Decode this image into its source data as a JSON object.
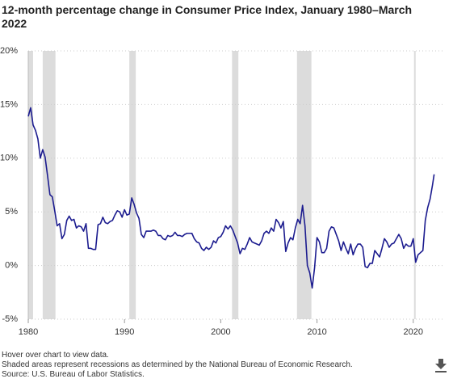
{
  "chart_data": {
    "type": "line",
    "title": "12-month percentage change in Consumer Price Index, January 1980–March 2022",
    "notes": [
      "Hover over chart to view data.",
      "Shaded areas represent recessions as determined by the National Bureau of Economic Research.",
      "Source: U.S. Bureau of Labor Statistics."
    ],
    "color": "#1c1c8f",
    "recessions": [
      [
        1980.0,
        1980.5
      ],
      [
        1981.5,
        1982.83
      ],
      [
        1990.5,
        1991.17
      ],
      [
        2001.17,
        2001.83
      ],
      [
        2007.92,
        2009.42
      ],
      [
        2020.08,
        2020.25
      ]
    ],
    "x": [
      1980,
      1980.25,
      1980.5,
      1980.75,
      1981,
      1981.25,
      1981.5,
      1981.75,
      1982,
      1982.25,
      1982.5,
      1982.75,
      1983,
      1983.25,
      1983.5,
      1983.75,
      1984,
      1984.25,
      1984.5,
      1984.75,
      1985,
      1985.25,
      1985.5,
      1985.75,
      1986,
      1986.25,
      1986.5,
      1986.75,
      1987,
      1987.25,
      1987.5,
      1987.75,
      1988,
      1988.25,
      1988.5,
      1988.75,
      1989,
      1989.25,
      1989.5,
      1989.75,
      1990,
      1990.25,
      1990.5,
      1990.75,
      1991,
      1991.25,
      1991.5,
      1991.75,
      1992,
      1992.25,
      1992.5,
      1992.75,
      1993,
      1993.25,
      1993.5,
      1993.75,
      1994,
      1994.25,
      1994.5,
      1994.75,
      1995,
      1995.25,
      1995.5,
      1995.75,
      1996,
      1996.25,
      1996.5,
      1996.75,
      1997,
      1997.25,
      1997.5,
      1997.75,
      1998,
      1998.25,
      1998.5,
      1998.75,
      1999,
      1999.25,
      1999.5,
      1999.75,
      2000,
      2000.25,
      2000.5,
      2000.75,
      2001,
      2001.25,
      2001.5,
      2001.75,
      2002,
      2002.25,
      2002.5,
      2002.75,
      2003,
      2003.25,
      2003.5,
      2003.75,
      2004,
      2004.25,
      2004.5,
      2004.75,
      2005,
      2005.25,
      2005.5,
      2005.75,
      2006,
      2006.25,
      2006.5,
      2006.75,
      2007,
      2007.25,
      2007.5,
      2007.75,
      2008,
      2008.25,
      2008.5,
      2008.75,
      2009,
      2009.25,
      2009.5,
      2009.75,
      2010,
      2010.25,
      2010.5,
      2010.75,
      2011,
      2011.25,
      2011.5,
      2011.75,
      2012,
      2012.25,
      2012.5,
      2012.75,
      2013,
      2013.25,
      2013.5,
      2013.75,
      2014,
      2014.25,
      2014.5,
      2014.75,
      2015,
      2015.25,
      2015.5,
      2015.75,
      2016,
      2016.25,
      2016.5,
      2016.75,
      2017,
      2017.25,
      2017.5,
      2017.75,
      2018,
      2018.25,
      2018.5,
      2018.75,
      2019,
      2019.25,
      2019.5,
      2019.75,
      2020,
      2020.25,
      2020.5,
      2020.75,
      2021,
      2021.25,
      2021.5,
      2021.75,
      2022,
      2022.17
    ],
    "values": [
      13.9,
      14.7,
      13.1,
      12.6,
      11.8,
      10.0,
      10.8,
      10.1,
      8.4,
      6.6,
      6.4,
      5.1,
      3.7,
      3.9,
      2.5,
      2.9,
      4.2,
      4.6,
      4.2,
      4.3,
      3.5,
      3.7,
      3.6,
      3.2,
      3.9,
      1.6,
      1.6,
      1.5,
      1.5,
      3.8,
      3.9,
      4.5,
      4.0,
      3.9,
      4.1,
      4.2,
      4.7,
      5.1,
      5.0,
      4.5,
      5.2,
      4.7,
      4.8,
      6.3,
      5.7,
      4.9,
      4.4,
      2.9,
      2.6,
      3.2,
      3.2,
      3.2,
      3.3,
      3.2,
      2.8,
      2.8,
      2.5,
      2.4,
      2.8,
      2.7,
      2.8,
      3.1,
      2.8,
      2.8,
      2.7,
      2.9,
      3.0,
      3.0,
      3.0,
      2.5,
      2.2,
      2.1,
      1.6,
      1.4,
      1.7,
      1.5,
      1.7,
      2.3,
      2.1,
      2.6,
      2.7,
      3.1,
      3.7,
      3.4,
      3.7,
      3.3,
      2.7,
      2.1,
      1.1,
      1.6,
      1.5,
      2.0,
      2.6,
      2.2,
      2.1,
      2.0,
      1.9,
      2.3,
      3.0,
      3.2,
      3.0,
      3.5,
      3.2,
      4.3,
      4.0,
      3.5,
      4.1,
      1.3,
      2.1,
      2.6,
      2.4,
      3.5,
      4.3,
      3.9,
      5.6,
      3.7,
      0.0,
      -0.7,
      -2.1,
      -0.2,
      2.6,
      2.2,
      1.2,
      1.2,
      1.6,
      3.2,
      3.6,
      3.5,
      2.9,
      2.3,
      1.4,
      2.2,
      1.6,
      1.1,
      2.0,
      1.0,
      1.6,
      2.0,
      2.0,
      1.7,
      -0.1,
      -0.2,
      0.2,
      0.2,
      1.4,
      1.1,
      0.8,
      1.6,
      2.5,
      2.2,
      1.7,
      2.0,
      2.1,
      2.5,
      2.9,
      2.5,
      1.6,
      2.0,
      1.8,
      1.8,
      2.5,
      0.3,
      1.0,
      1.2,
      1.4,
      4.2,
      5.4,
      6.2,
      7.5,
      8.5
    ],
    "xlim": [
      1980,
      2022.2
    ],
    "xticks": [
      1980,
      1990,
      2000,
      2010,
      2020
    ],
    "ylim": [
      -5,
      20
    ],
    "yticks": [
      {
        "value": -5,
        "label": "-5%"
      },
      {
        "value": 0,
        "label": "0%"
      },
      {
        "value": 5,
        "label": "5%"
      },
      {
        "value": 10,
        "label": "10%"
      },
      {
        "value": 15,
        "label": "15%"
      },
      {
        "value": 20,
        "label": "20%"
      }
    ],
    "grid": true
  }
}
